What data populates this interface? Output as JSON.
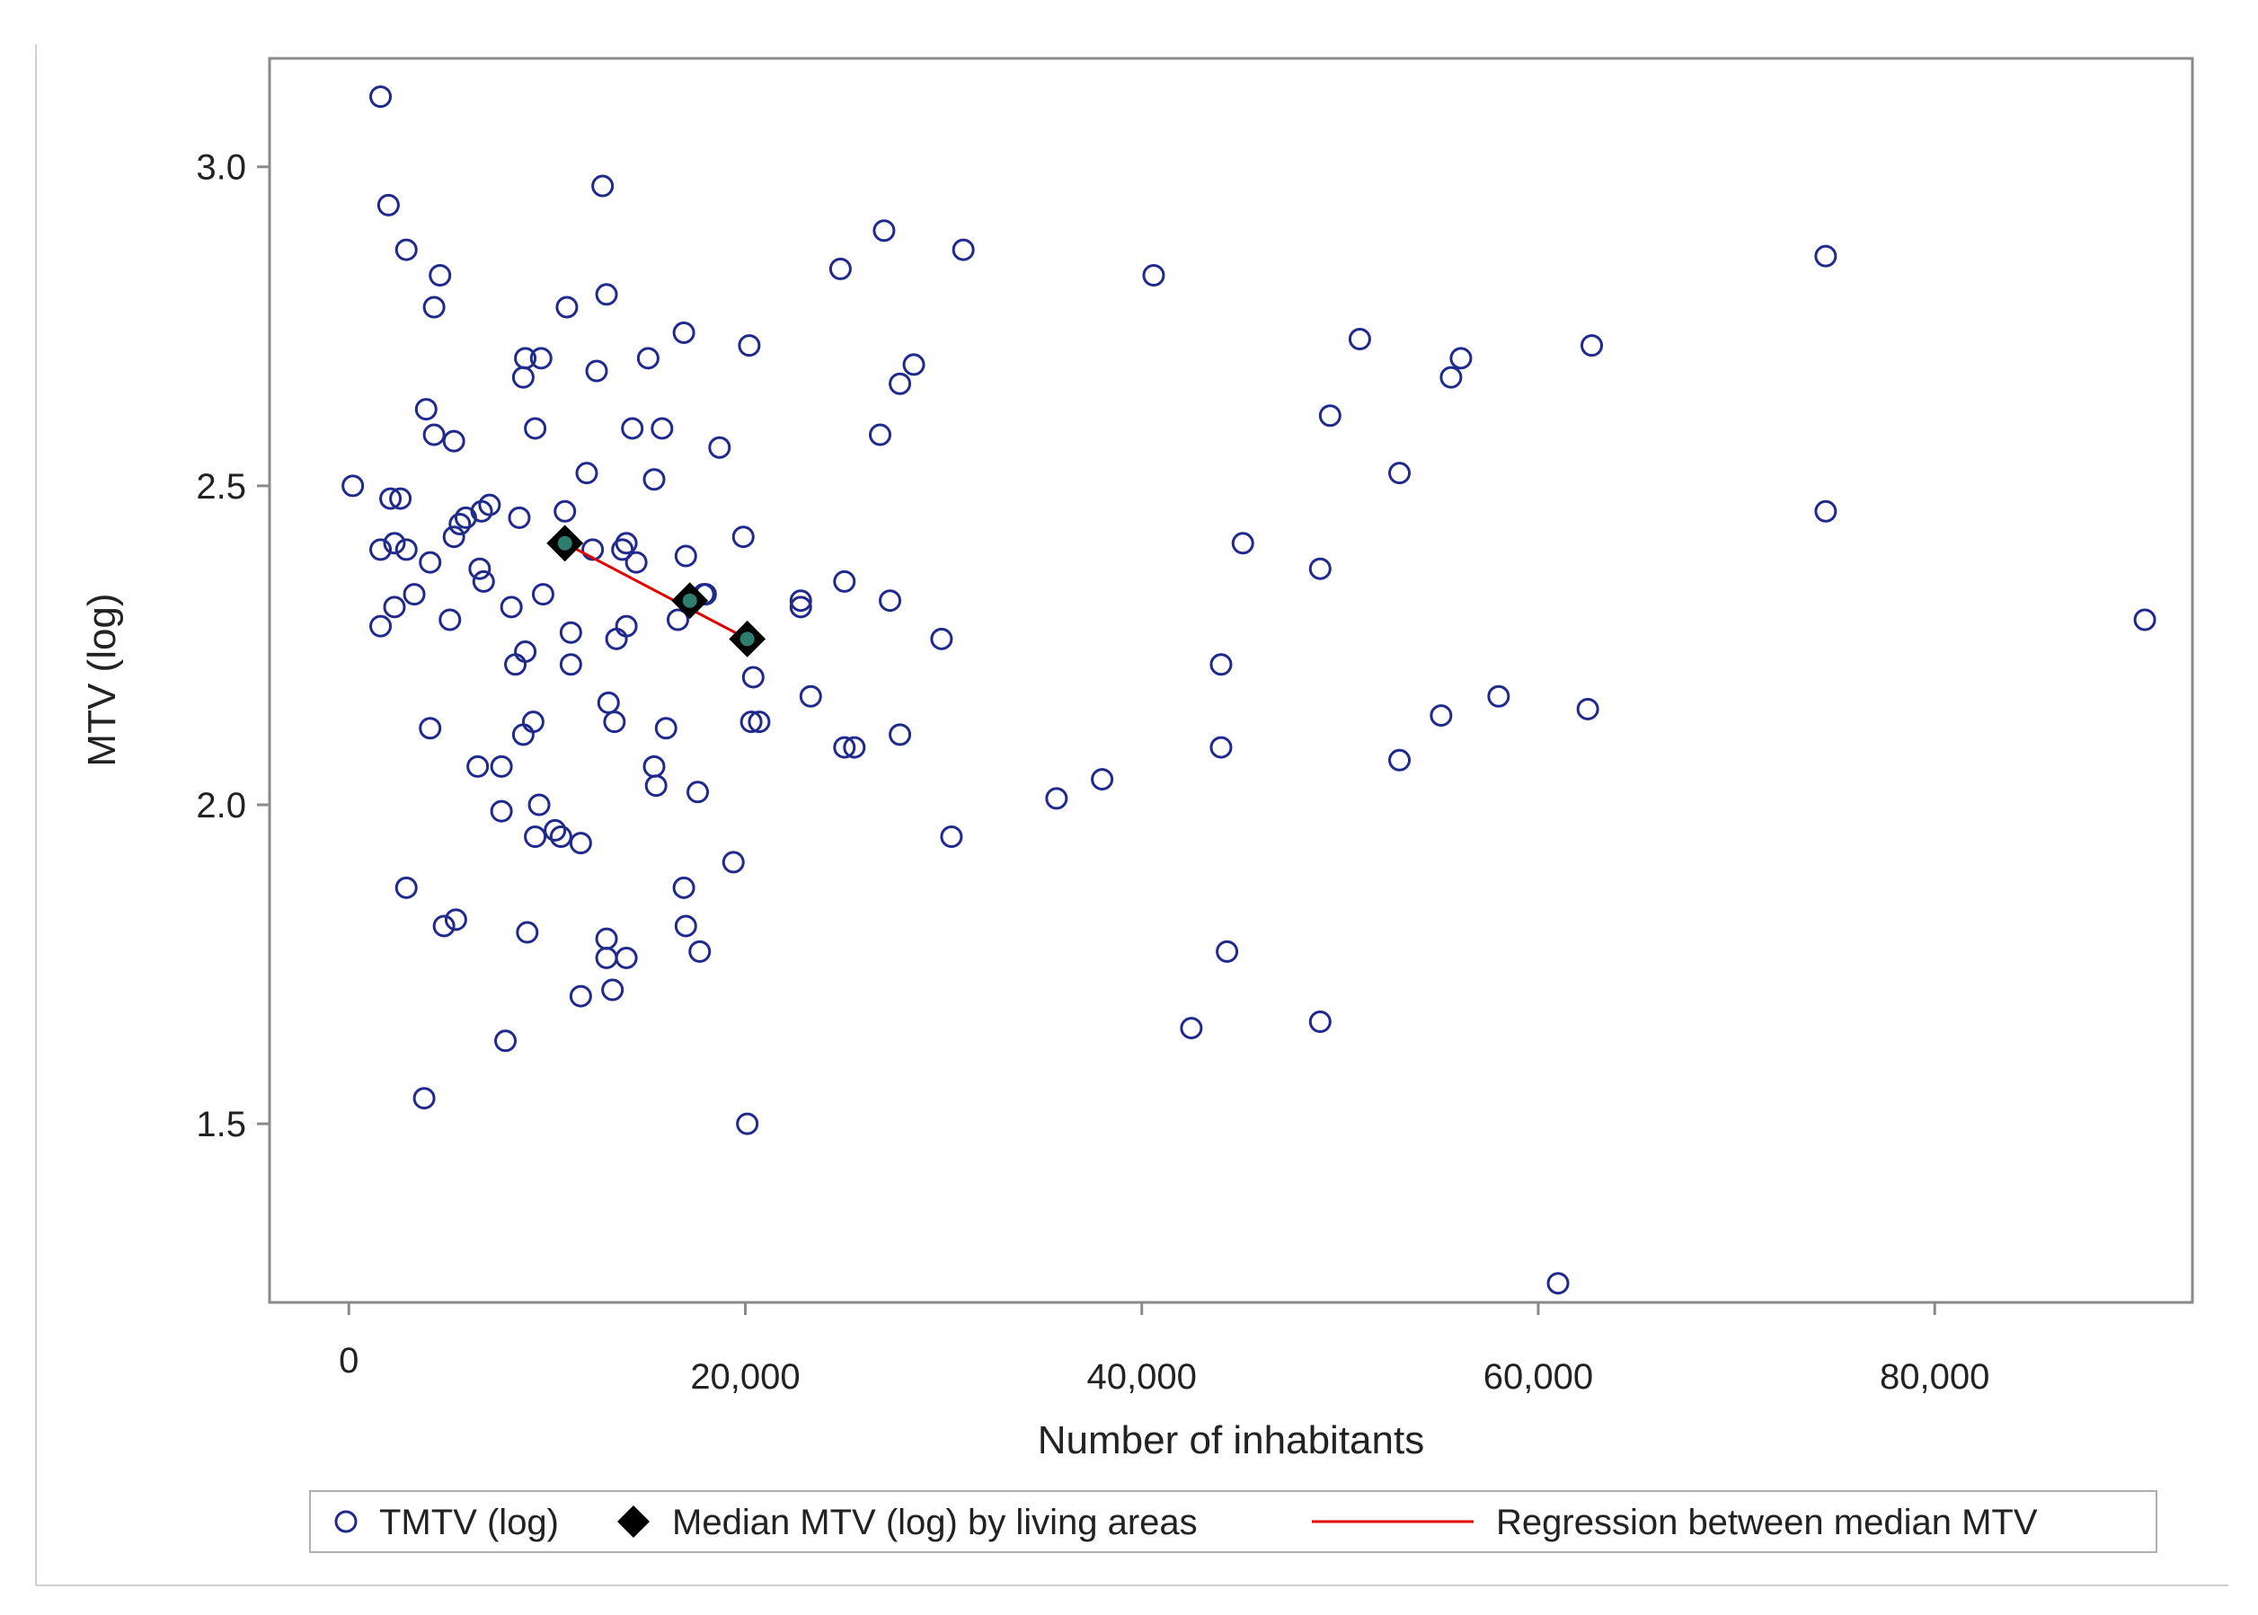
{
  "chart_data": {
    "type": "scatter",
    "title": "",
    "xlabel": "Number of inhabitants",
    "ylabel": "MTV (log)",
    "xlim": [
      -4000,
      93000
    ],
    "ylim": [
      1.22,
      3.17
    ],
    "x_ticks": [
      {
        "value": 0,
        "label": "0"
      },
      {
        "value": 20000,
        "label": "20,000"
      },
      {
        "value": 40000,
        "label": "40,000"
      },
      {
        "value": 60000,
        "label": "60,000"
      },
      {
        "value": 80000,
        "label": "80,000"
      }
    ],
    "y_ticks": [
      {
        "value": 1.5,
        "label": "1.5"
      },
      {
        "value": 2.0,
        "label": "2.0"
      },
      {
        "value": 2.5,
        "label": "2.5"
      },
      {
        "value": 3.0,
        "label": "3.0"
      }
    ],
    "colors": {
      "points": "#1f2a8c",
      "median": "#000000",
      "median_inner": "#2e7d6e",
      "regression": "#e00000",
      "frame": "#8a8a8a"
    },
    "legend": {
      "placement": "bottom",
      "entries": [
        {
          "name": "TMTV (log)",
          "marker": "circle"
        },
        {
          "name": "Median MTV (log) by living areas",
          "marker": "diamond"
        },
        {
          "name": "Regression between median MTV",
          "marker": "line"
        }
      ]
    },
    "series": [
      {
        "name": "TMTV (log)",
        "points": [
          [
            1600,
            3.11
          ],
          [
            2000,
            2.94
          ],
          [
            2900,
            2.87
          ],
          [
            4600,
            2.83
          ],
          [
            4300,
            2.78
          ],
          [
            3900,
            2.62
          ],
          [
            4300,
            2.58
          ],
          [
            5300,
            2.57
          ],
          [
            200,
            2.5
          ],
          [
            2100,
            2.48
          ],
          [
            2600,
            2.48
          ],
          [
            1600,
            2.4
          ],
          [
            2300,
            2.41
          ],
          [
            2900,
            2.4
          ],
          [
            4100,
            2.38
          ],
          [
            5300,
            2.42
          ],
          [
            5600,
            2.44
          ],
          [
            5900,
            2.45
          ],
          [
            6700,
            2.46
          ],
          [
            7100,
            2.47
          ],
          [
            6600,
            2.37
          ],
          [
            6800,
            2.35
          ],
          [
            3300,
            2.33
          ],
          [
            2300,
            2.31
          ],
          [
            1600,
            2.28
          ],
          [
            5100,
            2.29
          ],
          [
            8200,
            2.31
          ],
          [
            8400,
            2.22
          ],
          [
            8900,
            2.24
          ],
          [
            7700,
            2.06
          ],
          [
            6500,
            2.06
          ],
          [
            4100,
            2.12
          ],
          [
            7700,
            1.99
          ],
          [
            9600,
            2.0
          ],
          [
            9400,
            1.95
          ],
          [
            10400,
            1.96
          ],
          [
            10700,
            1.95
          ],
          [
            11700,
            1.94
          ],
          [
            8600,
            2.45
          ],
          [
            9800,
            2.33
          ],
          [
            10900,
            2.46
          ],
          [
            12300,
            2.4
          ],
          [
            12500,
            2.68
          ],
          [
            11000,
            2.78
          ],
          [
            12800,
            2.97
          ],
          [
            13000,
            2.8
          ],
          [
            8900,
            2.7
          ],
          [
            8800,
            2.67
          ],
          [
            9400,
            2.59
          ],
          [
            9700,
            2.7
          ],
          [
            12000,
            2.52
          ],
          [
            11200,
            2.27
          ],
          [
            11200,
            2.22
          ],
          [
            8800,
            2.11
          ],
          [
            9300,
            2.13
          ],
          [
            13100,
            2.16
          ],
          [
            13400,
            2.13
          ],
          [
            13500,
            2.26
          ],
          [
            13800,
            2.4
          ],
          [
            14000,
            2.41
          ],
          [
            14000,
            2.28
          ],
          [
            14300,
            2.59
          ],
          [
            14500,
            2.38
          ],
          [
            15100,
            2.7
          ],
          [
            15400,
            2.51
          ],
          [
            15800,
            2.59
          ],
          [
            16000,
            2.12
          ],
          [
            15400,
            2.06
          ],
          [
            15500,
            2.03
          ],
          [
            16600,
            2.29
          ],
          [
            16900,
            2.74
          ],
          [
            17000,
            2.39
          ],
          [
            17900,
            2.33
          ],
          [
            18000,
            2.33
          ],
          [
            17600,
            2.02
          ],
          [
            18700,
            2.56
          ],
          [
            19900,
            2.42
          ],
          [
            20200,
            2.72
          ],
          [
            20400,
            2.2
          ],
          [
            20300,
            2.13
          ],
          [
            20700,
            2.13
          ],
          [
            22800,
            2.32
          ],
          [
            22800,
            2.31
          ],
          [
            23300,
            2.17
          ],
          [
            24800,
            2.84
          ],
          [
            25000,
            2.35
          ],
          [
            25000,
            2.09
          ],
          [
            25500,
            2.09
          ],
          [
            26800,
            2.58
          ],
          [
            27000,
            2.9
          ],
          [
            27300,
            2.32
          ],
          [
            27800,
            2.66
          ],
          [
            28500,
            2.69
          ],
          [
            27800,
            2.11
          ],
          [
            29900,
            2.26
          ],
          [
            31000,
            2.87
          ],
          [
            30400,
            1.95
          ],
          [
            9000,
            1.8
          ],
          [
            13000,
            1.79
          ],
          [
            13000,
            1.76
          ],
          [
            14000,
            1.76
          ],
          [
            13300,
            1.71
          ],
          [
            11700,
            1.7
          ],
          [
            7900,
            1.63
          ],
          [
            3800,
            1.54
          ],
          [
            2900,
            1.87
          ],
          [
            4800,
            1.81
          ],
          [
            5400,
            1.82
          ],
          [
            16900,
            1.87
          ],
          [
            17000,
            1.81
          ],
          [
            17700,
            1.77
          ],
          [
            19400,
            1.91
          ],
          [
            20100,
            1.5
          ],
          [
            35700,
            2.01
          ],
          [
            38000,
            2.04
          ],
          [
            40600,
            2.83
          ],
          [
            42500,
            1.65
          ],
          [
            44000,
            2.22
          ],
          [
            44000,
            2.09
          ],
          [
            44300,
            1.77
          ],
          [
            45100,
            2.41
          ],
          [
            49000,
            2.37
          ],
          [
            49000,
            1.66
          ],
          [
            49500,
            2.61
          ],
          [
            51000,
            2.73
          ],
          [
            53000,
            2.52
          ],
          [
            53000,
            2.07
          ],
          [
            55100,
            2.14
          ],
          [
            55600,
            2.67
          ],
          [
            56100,
            2.7
          ],
          [
            58000,
            2.17
          ],
          [
            61000,
            1.25
          ],
          [
            62500,
            2.15
          ],
          [
            62700,
            2.72
          ],
          [
            74500,
            2.86
          ],
          [
            74500,
            2.46
          ],
          [
            90600,
            2.29
          ]
        ]
      },
      {
        "name": "Median MTV (log) by living areas",
        "points": [
          [
            10900,
            2.41
          ],
          [
            17200,
            2.32
          ],
          [
            20100,
            2.26
          ]
        ]
      },
      {
        "name": "Regression between median MTV",
        "points": [
          [
            10900,
            2.41
          ],
          [
            20100,
            2.26
          ]
        ]
      }
    ]
  }
}
